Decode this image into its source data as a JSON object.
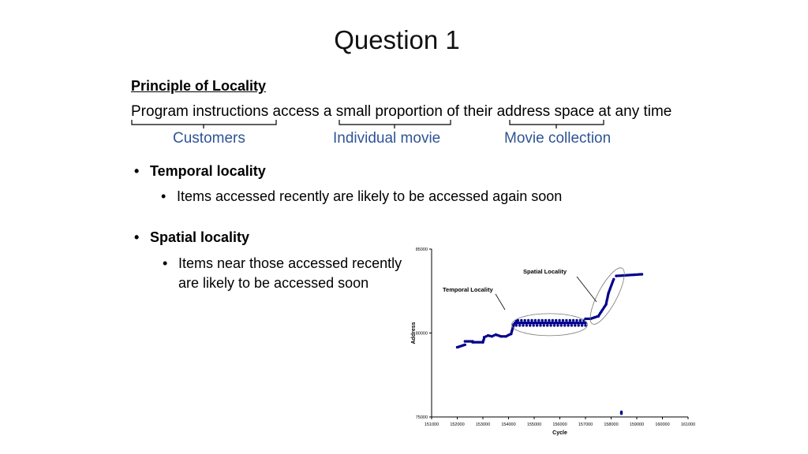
{
  "slide": {
    "title": "Question 1",
    "principle_heading": "Principle of Locality",
    "sentence": "Program instructions access a small proportion of their address space at any time",
    "brace_labels": {
      "customers": "Customers",
      "individual_movie": "Individual movie",
      "movie_collection": "Movie collection"
    },
    "accent_color": "#2f5496",
    "bullets": [
      {
        "title": "Temporal locality",
        "sub": "Items accessed recently are likely to be accessed again soon"
      },
      {
        "title": "Spatial locality",
        "sub_line1": "Items near those accessed recently",
        "sub_line2": "are likely to be accessed soon"
      }
    ]
  },
  "chart_data": {
    "type": "scatter",
    "xlabel": "Cycle",
    "ylabel": "Address",
    "xlim": [
      151000,
      161000
    ],
    "ylim": [
      75000,
      85000
    ],
    "x_ticks": [
      "151000",
      "152000",
      "153000",
      "154000",
      "155000",
      "156000",
      "157000",
      "158000",
      "159000",
      "160000",
      "161000"
    ],
    "y_ticks": [
      "75000",
      "80000",
      "85000"
    ],
    "series_color": "#00008b",
    "annotations": [
      "Temporal Locality",
      "Spatial Locality"
    ],
    "segments": [
      {
        "x": [
          152000,
          152300
        ],
        "y": [
          79150,
          79300
        ]
      },
      {
        "x": [
          152300,
          152600
        ],
        "y": [
          79500,
          79500
        ]
      },
      {
        "x": [
          152600,
          153000
        ],
        "y": [
          79450,
          79450
        ]
      },
      {
        "x": [
          153000,
          153050
        ],
        "y": [
          79450,
          79700
        ]
      },
      {
        "x": [
          153050,
          153200
        ],
        "y": [
          79750,
          79850
        ]
      },
      {
        "x": [
          153200,
          153350
        ],
        "y": [
          79850,
          79800
        ]
      },
      {
        "x": [
          153350,
          153500
        ],
        "y": [
          79800,
          79900
        ]
      },
      {
        "x": [
          153500,
          153700
        ],
        "y": [
          79900,
          79800
        ]
      },
      {
        "x": [
          153700,
          153900
        ],
        "y": [
          79800,
          79800
        ]
      },
      {
        "x": [
          153900,
          154100
        ],
        "y": [
          79800,
          79950
        ]
      },
      {
        "x": [
          154100,
          154200
        ],
        "y": [
          79950,
          80500
        ]
      },
      {
        "x": [
          154200,
          154300
        ],
        "y": [
          80500,
          80700
        ]
      },
      {
        "x": [
          154300,
          157000
        ],
        "y": [
          80450,
          80750
        ]
      },
      {
        "x": [
          157000,
          157200
        ],
        "y": [
          80850,
          80850
        ]
      },
      {
        "x": [
          157200,
          157500
        ],
        "y": [
          80850,
          81000
        ]
      },
      {
        "x": [
          157500,
          157800
        ],
        "y": [
          81000,
          81700
        ]
      },
      {
        "x": [
          157800,
          157900
        ],
        "y": [
          81700,
          82400
        ]
      },
      {
        "x": [
          157900,
          158100
        ],
        "y": [
          82400,
          83200
        ]
      },
      {
        "x": [
          158200,
          159200
        ],
        "y": [
          83400,
          83500
        ]
      },
      {
        "x": [
          158400,
          158400
        ],
        "y": [
          75200,
          75300
        ]
      }
    ]
  }
}
